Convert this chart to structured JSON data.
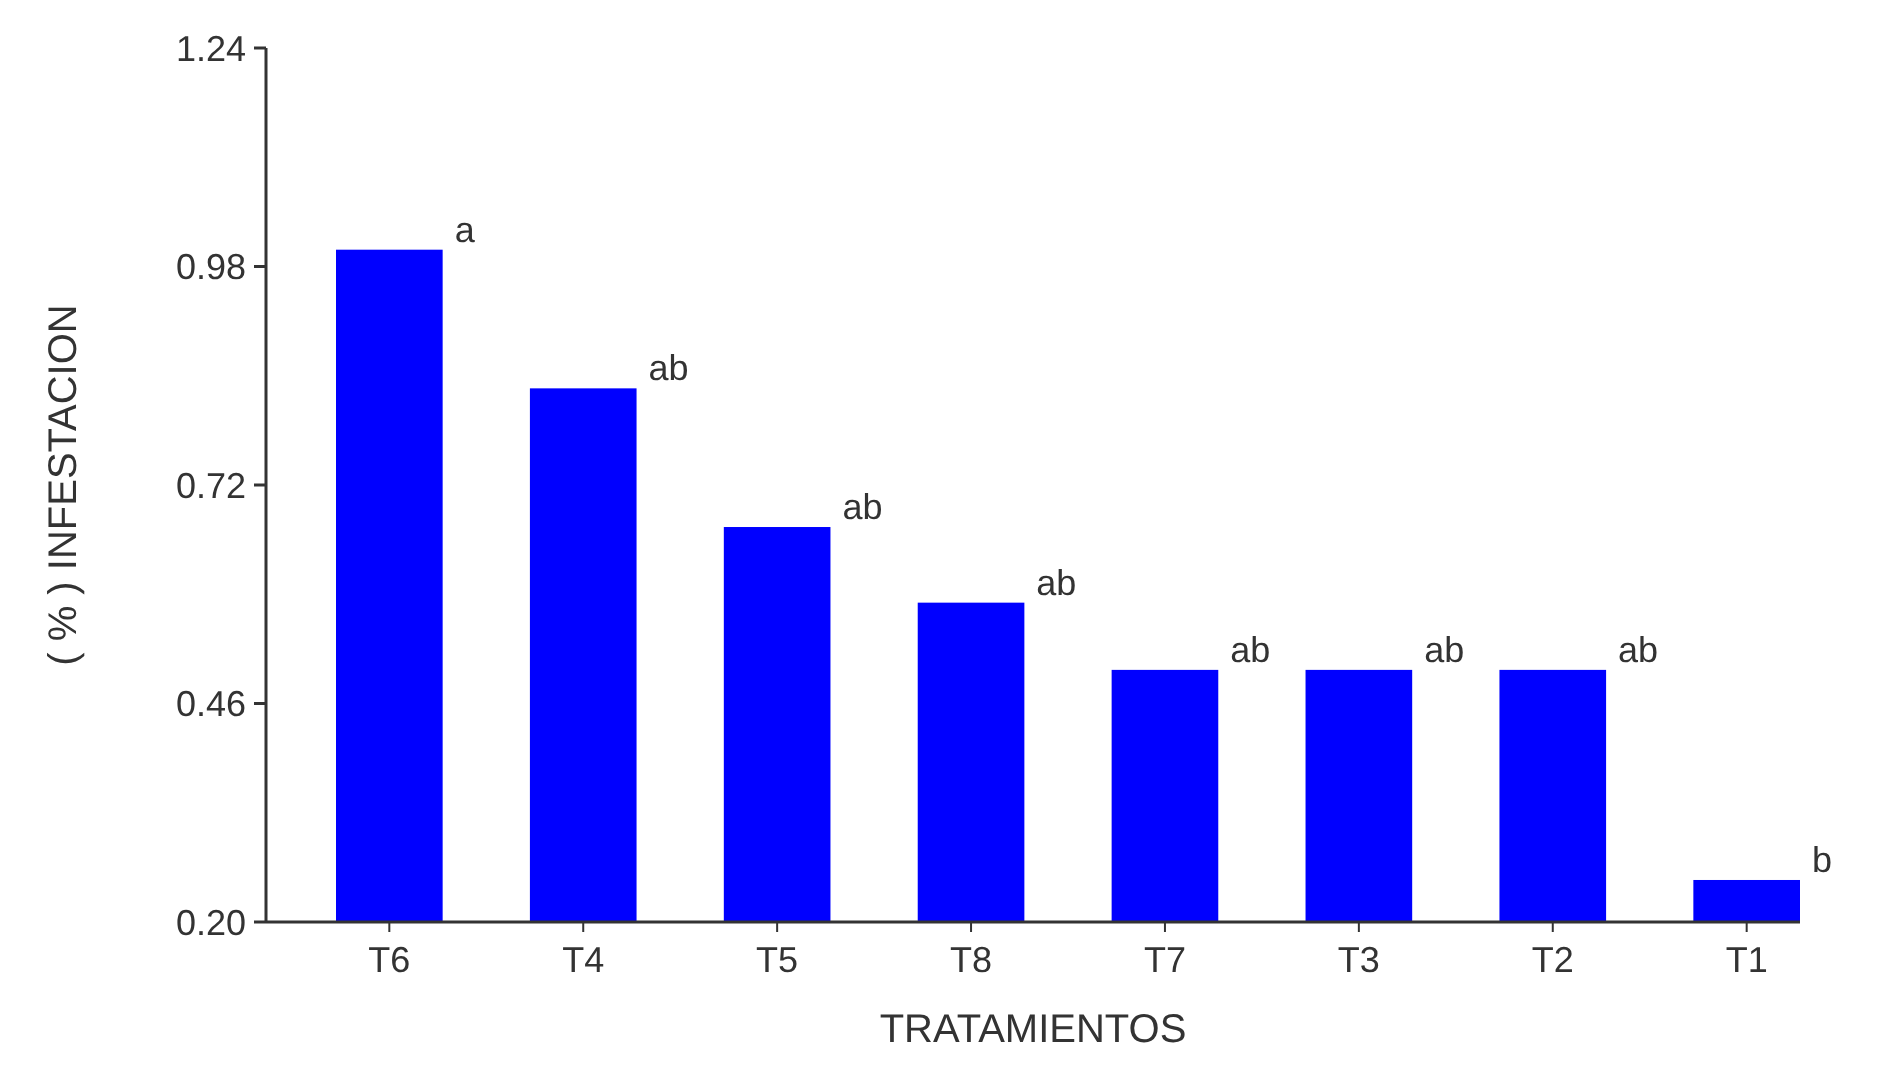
{
  "chart_data": {
    "type": "bar",
    "xlabel": "TRATAMIENTOS",
    "ylabel": "( % ) INFESTACION",
    "categories": [
      "T6",
      "T4",
      "T5",
      "T8",
      "T7",
      "T3",
      "T2",
      "T1"
    ],
    "values": [
      1.0,
      0.835,
      0.67,
      0.58,
      0.5,
      0.5,
      0.5,
      0.25
    ],
    "color": "#0000ff",
    "ylim": [
      0.2,
      1.24
    ],
    "yticks": [
      {
        "value": 0.2,
        "label": "0.20"
      },
      0.46,
      0.72,
      0.98,
      1.24
    ],
    "grid": false,
    "annotations": [
      {
        "text": "a",
        "x": "T6",
        "y": 1.0
      },
      {
        "text": "ab",
        "x": "T4",
        "y": 0.835
      },
      {
        "text": "ab",
        "x": "T5",
        "y": 0.67
      },
      {
        "text": "ab",
        "x": "T8",
        "y": 0.58
      },
      {
        "text": "ab",
        "x": "T7",
        "y": 0.5
      },
      {
        "text": "ab",
        "x": "T3",
        "y": 0.5
      },
      {
        "text": "ab",
        "x": "T2",
        "y": 0.5
      },
      {
        "text": "b",
        "x": "T1",
        "y": 0.25
      }
    ]
  }
}
